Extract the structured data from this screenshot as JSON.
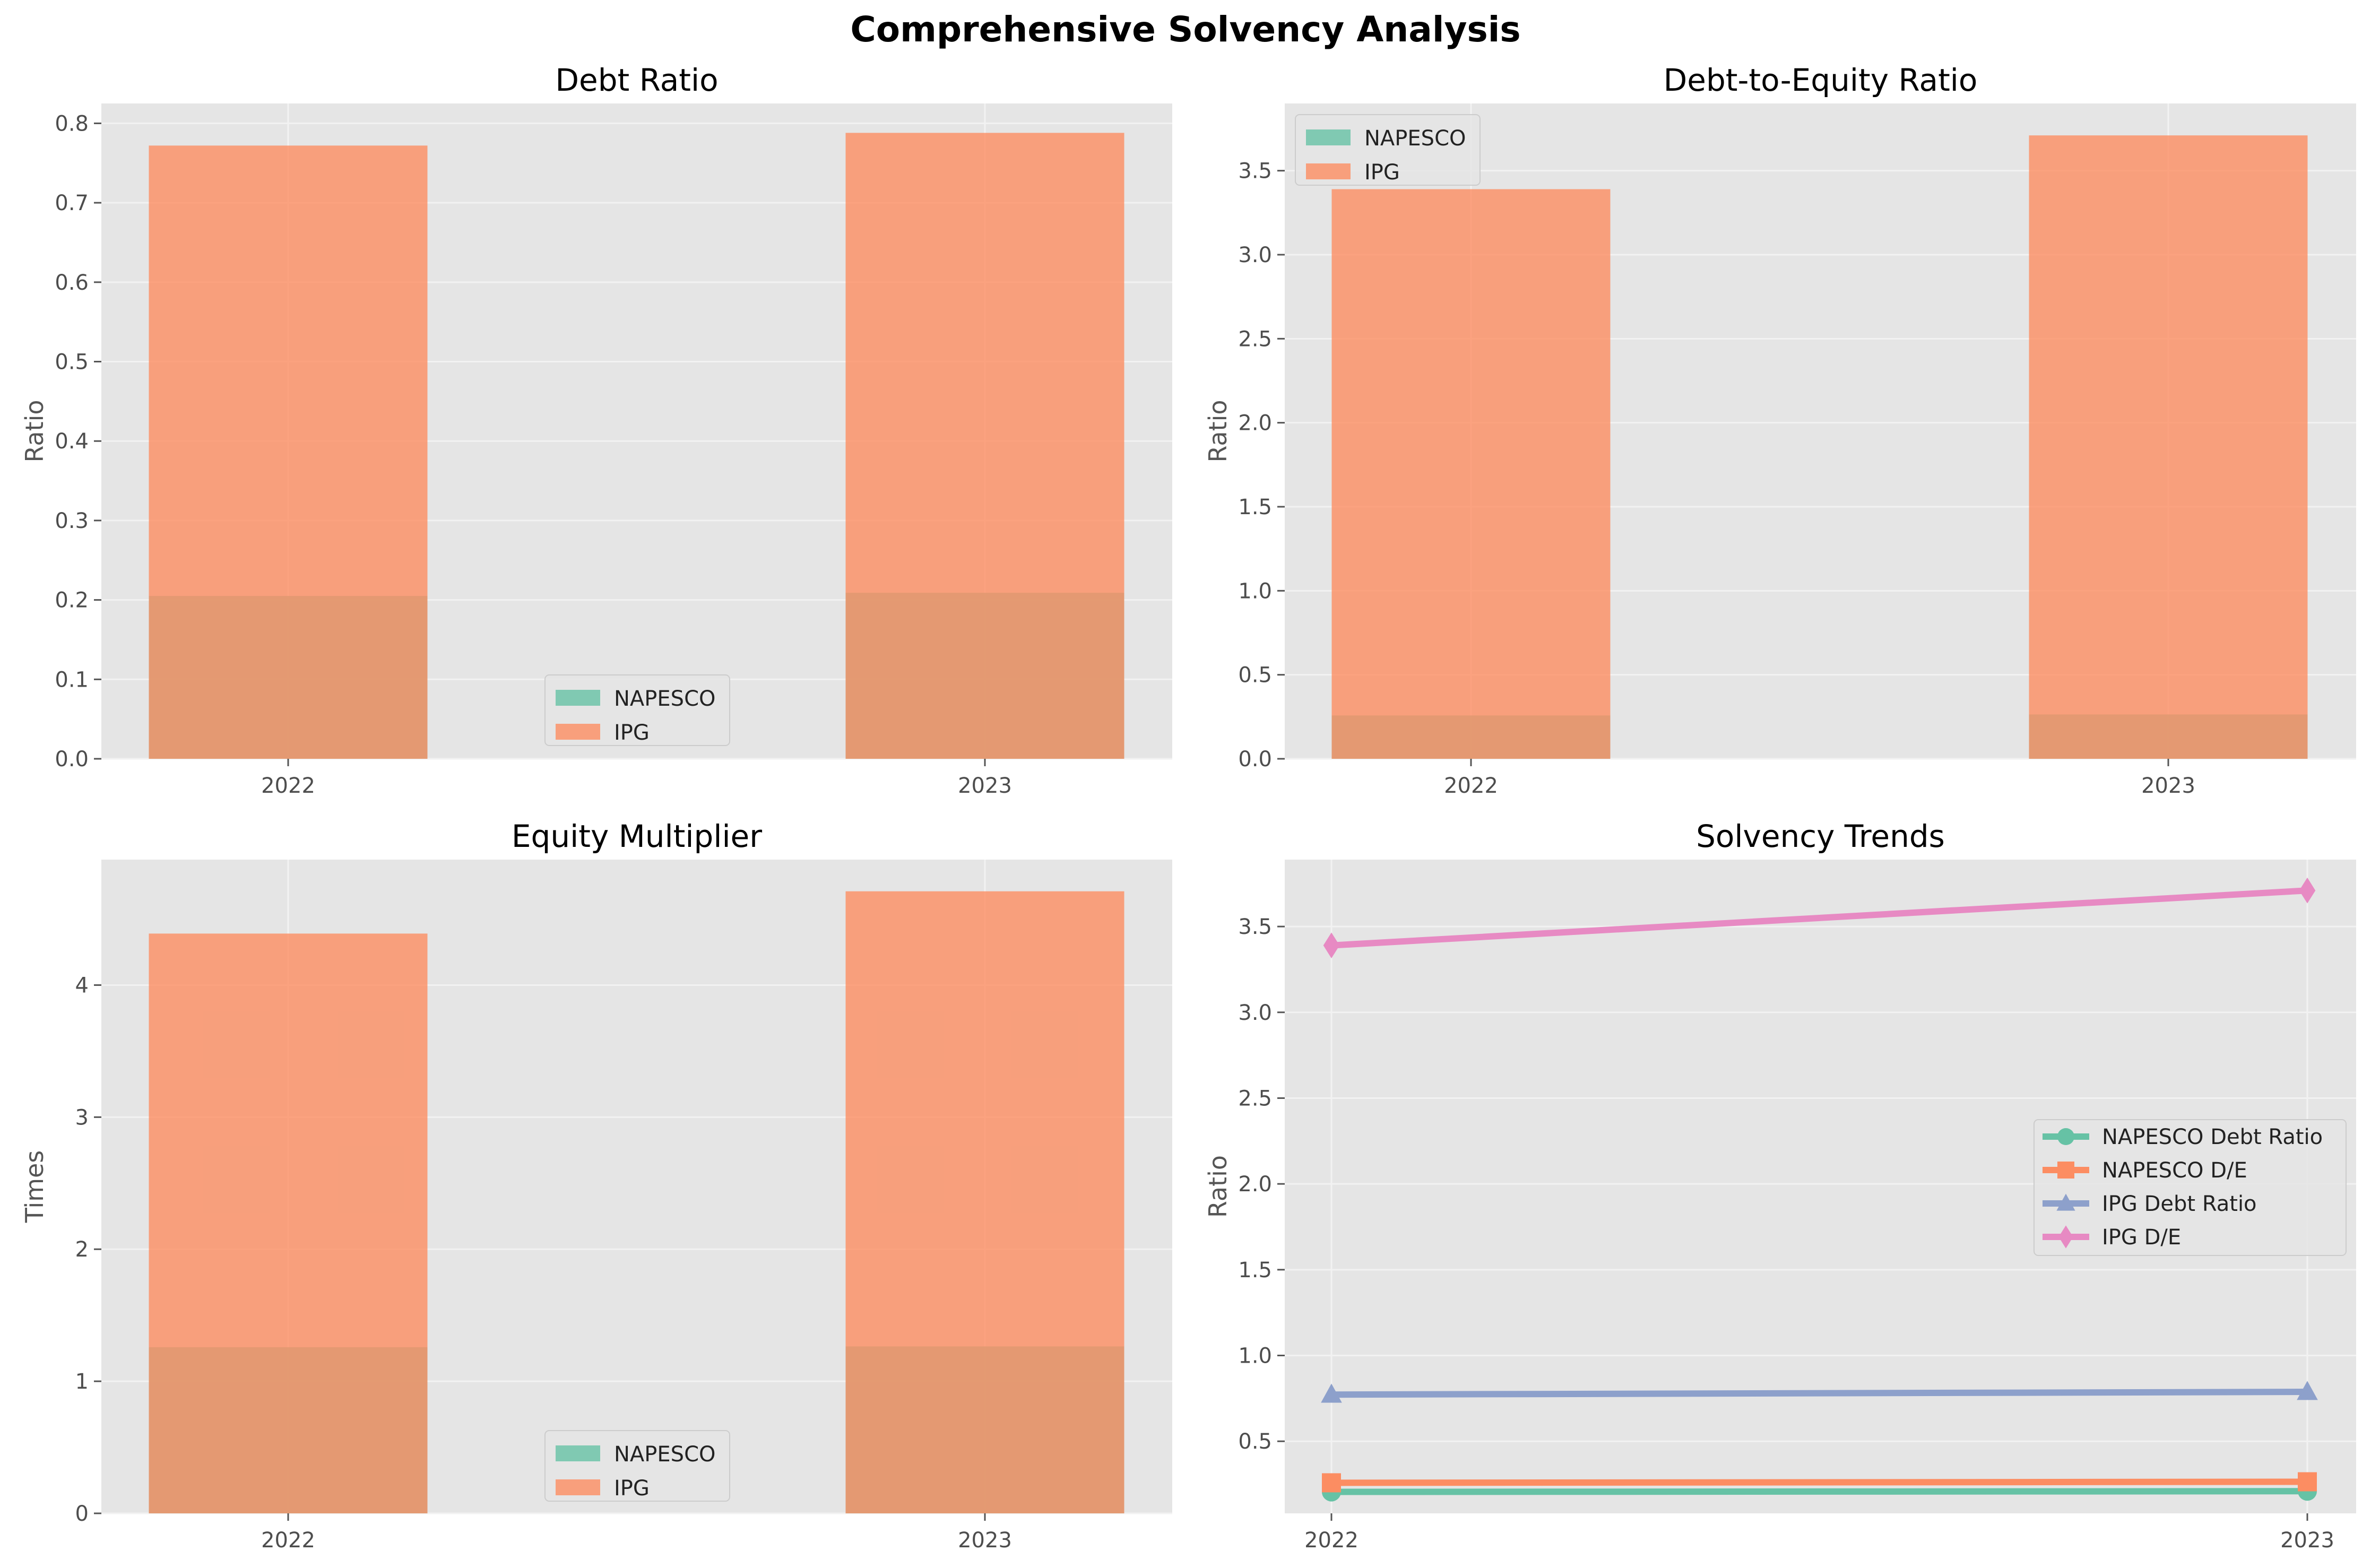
{
  "suptitle": "Comprehensive Solvency Analysis",
  "colors": {
    "napesco": "#66c2a5",
    "ipg": "#fc8d62",
    "ipg_debt_line": "#8da0cb",
    "ipg_de_line": "#e78ac3",
    "axes_bg": "#e5e5e5",
    "grid": "#f2f2f2"
  },
  "chart_data": [
    {
      "type": "bar",
      "title": "Debt Ratio",
      "xlabel": "",
      "ylabel": "Ratio",
      "categories": [
        "2022",
        "2023"
      ],
      "ylim": [
        0,
        0.825
      ],
      "yticks": [
        0.0,
        0.1,
        0.2,
        0.3,
        0.4,
        0.5,
        0.6,
        0.7,
        0.8
      ],
      "ytick_labels": [
        "0.0",
        "0.1",
        "0.2",
        "0.3",
        "0.4",
        "0.5",
        "0.6",
        "0.7",
        "0.8"
      ],
      "series": [
        {
          "name": "NAPESCO",
          "values": [
            0.205,
            0.209
          ]
        },
        {
          "name": "IPG",
          "values": [
            0.772,
            0.788
          ]
        }
      ],
      "legend": "lower-center",
      "grid": true
    },
    {
      "type": "bar",
      "title": "Debt-to-Equity Ratio",
      "xlabel": "",
      "ylabel": "Ratio",
      "categories": [
        "2022",
        "2023"
      ],
      "ylim": [
        0,
        3.9
      ],
      "yticks": [
        0.0,
        0.5,
        1.0,
        1.5,
        2.0,
        2.5,
        3.0,
        3.5
      ],
      "ytick_labels": [
        "0.0",
        "0.5",
        "1.0",
        "1.5",
        "2.0",
        "2.5",
        "3.0",
        "3.5"
      ],
      "series": [
        {
          "name": "NAPESCO",
          "values": [
            0.258,
            0.264
          ]
        },
        {
          "name": "IPG",
          "values": [
            3.39,
            3.71
          ]
        }
      ],
      "legend": "top-left",
      "grid": true
    },
    {
      "type": "bar",
      "title": "Equity Multiplier",
      "xlabel": "",
      "ylabel": "Times",
      "categories": [
        "2022",
        "2023"
      ],
      "ylim": [
        0,
        4.95
      ],
      "yticks": [
        0,
        1,
        2,
        3,
        4
      ],
      "ytick_labels": [
        "0",
        "1",
        "2",
        "3",
        "4"
      ],
      "series": [
        {
          "name": "NAPESCO",
          "values": [
            1.258,
            1.264
          ]
        },
        {
          "name": "IPG",
          "values": [
            4.39,
            4.71
          ]
        }
      ],
      "legend": "lower-center",
      "grid": true
    },
    {
      "type": "line",
      "title": "Solvency Trends",
      "xlabel": "",
      "ylabel": "Ratio",
      "x": [
        "2022",
        "2023"
      ],
      "ylim": [
        0.08,
        3.89
      ],
      "yticks": [
        0.5,
        1.0,
        1.5,
        2.0,
        2.5,
        3.0,
        3.5
      ],
      "ytick_labels": [
        "0.5",
        "1.0",
        "1.5",
        "2.0",
        "2.5",
        "3.0",
        "3.5"
      ],
      "series": [
        {
          "name": "NAPESCO Debt Ratio",
          "values": [
            0.205,
            0.209
          ],
          "marker": "circle"
        },
        {
          "name": "NAPESCO D/E",
          "values": [
            0.258,
            0.264
          ],
          "marker": "square"
        },
        {
          "name": "IPG Debt Ratio",
          "values": [
            0.772,
            0.788
          ],
          "marker": "triangle"
        },
        {
          "name": "IPG D/E",
          "values": [
            3.39,
            3.71
          ],
          "marker": "diamond"
        }
      ],
      "legend": "center-right",
      "grid": true
    }
  ]
}
